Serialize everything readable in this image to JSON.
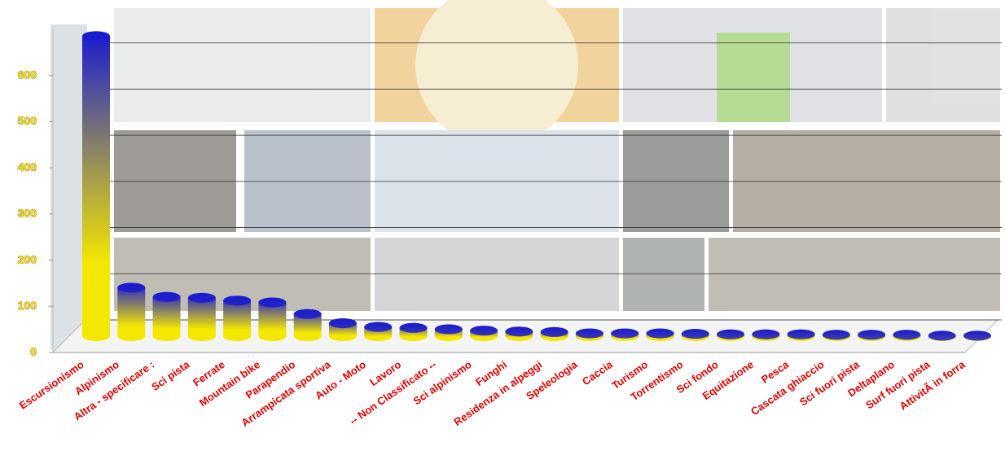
{
  "chart_data": {
    "type": "bar",
    "categories": [
      "Escursionismo",
      "Alpinismo",
      "Altra - specificare :",
      "Sci pista",
      "Ferrate",
      "Mountain bike",
      "Parapendio",
      "Arrampicata sportiva",
      "Auto - Moto",
      "Lavoro",
      "-- Non Classificato --",
      "Sci alpinismo",
      "Funghi",
      "Residenza in alpeggi",
      "Speleologia",
      "Caccia",
      "Turismo",
      "Torrentismo",
      "Sci fondo",
      "Equitazione",
      "Pesca",
      "Cascata ghiaccio",
      "Sci fuori pista",
      "Deltaplano",
      "Surf fuori pista",
      "AttivitÃ  in forra"
    ],
    "values": [
      650,
      105,
      85,
      83,
      77,
      73,
      48,
      28,
      20,
      18,
      15,
      12,
      10,
      9,
      6,
      6,
      6,
      5,
      4,
      4,
      4,
      3,
      3,
      3,
      1,
      1
    ],
    "colors": [
      "#1a1ad0",
      "#f5e800"
    ],
    "ylim": [
      0,
      700
    ],
    "yticks": [
      0,
      100,
      200,
      300,
      400,
      500,
      600
    ],
    "grid": true
  }
}
